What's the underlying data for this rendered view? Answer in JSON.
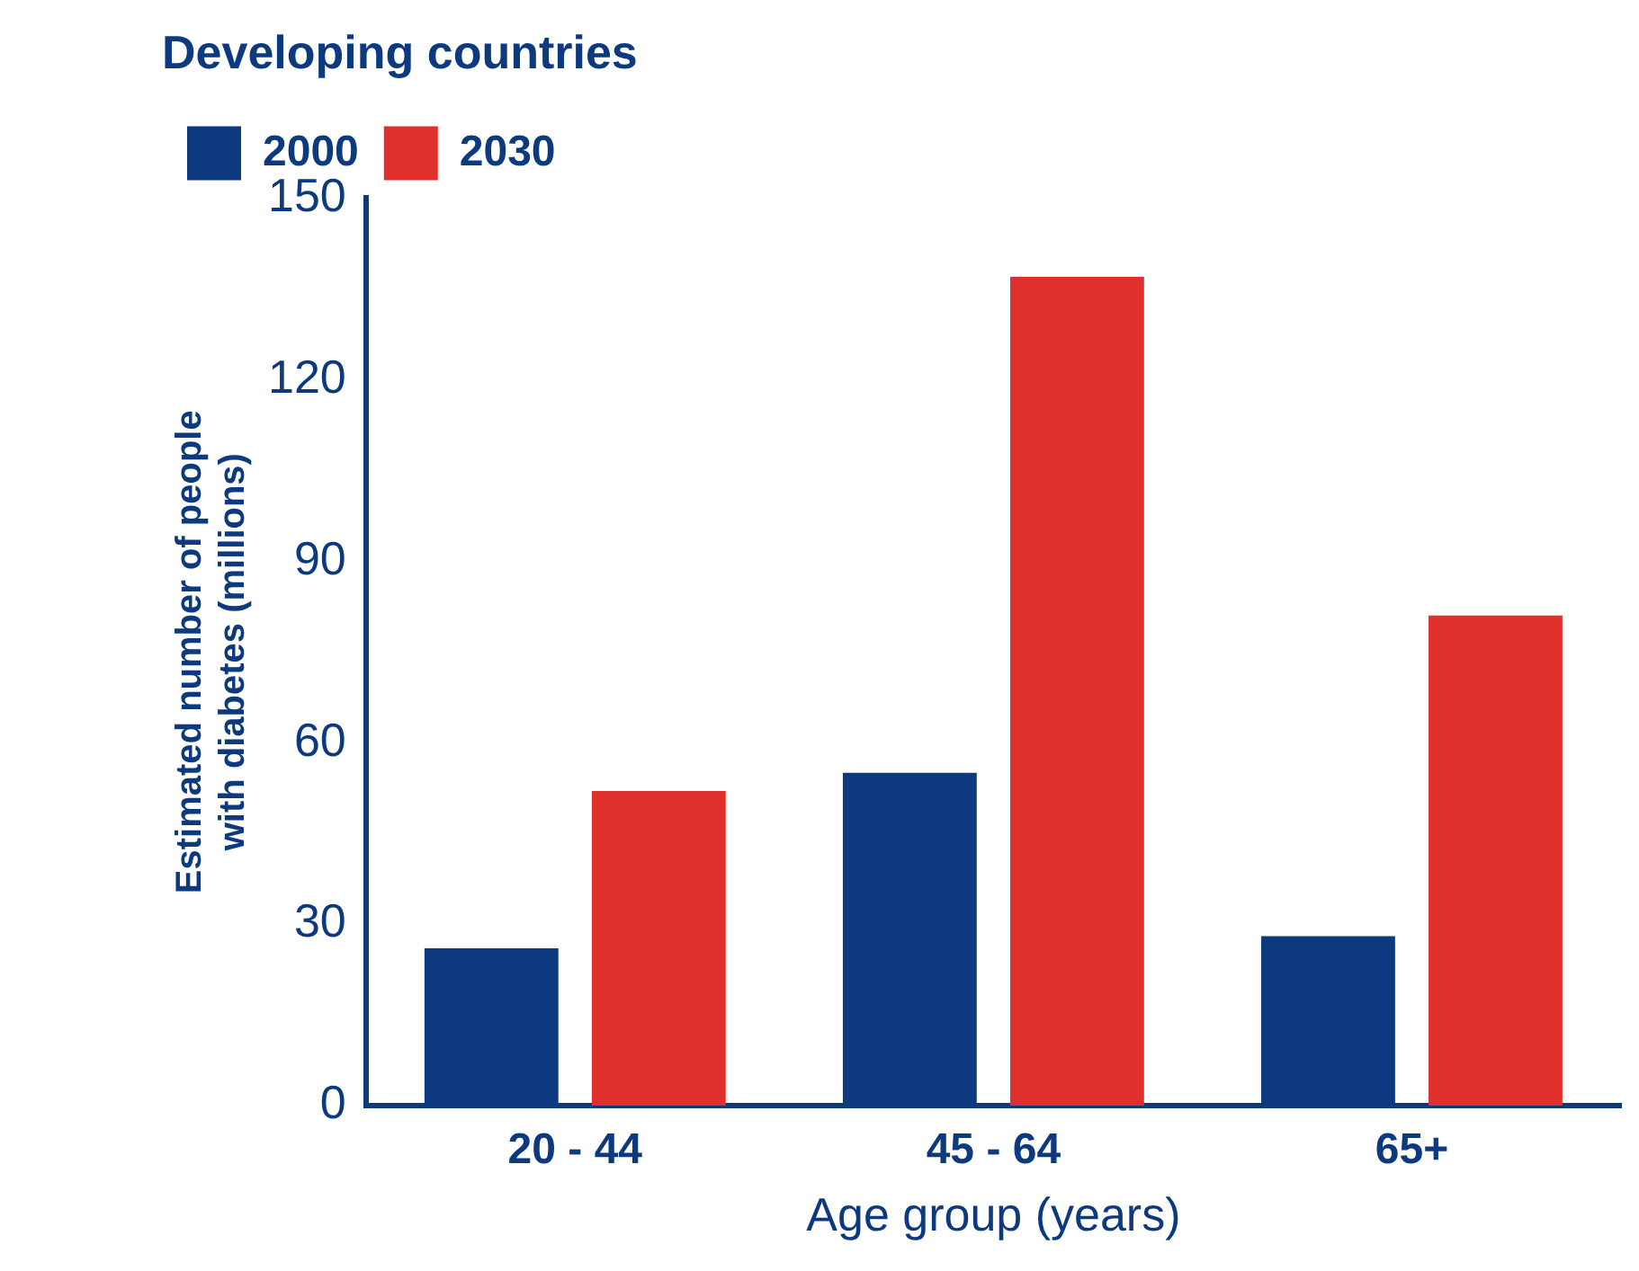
{
  "chart_data": {
    "type": "bar",
    "title": "Developing countries",
    "xlabel": "Age group (years)",
    "ylabel": "Estimated number of people with diabetes (millions)",
    "categories": [
      "20 - 44",
      "45 - 64",
      "65+"
    ],
    "series": [
      {
        "name": "2000",
        "color": "#0d3a7e",
        "values": [
          26,
          55,
          28
        ]
      },
      {
        "name": "2030",
        "color": "#e0302e",
        "values": [
          52,
          137,
          81
        ]
      }
    ],
    "ylim": [
      0,
      150
    ],
    "yticks": [
      0,
      30,
      60,
      90,
      120,
      150
    ],
    "grid": false,
    "legend": "top left"
  }
}
